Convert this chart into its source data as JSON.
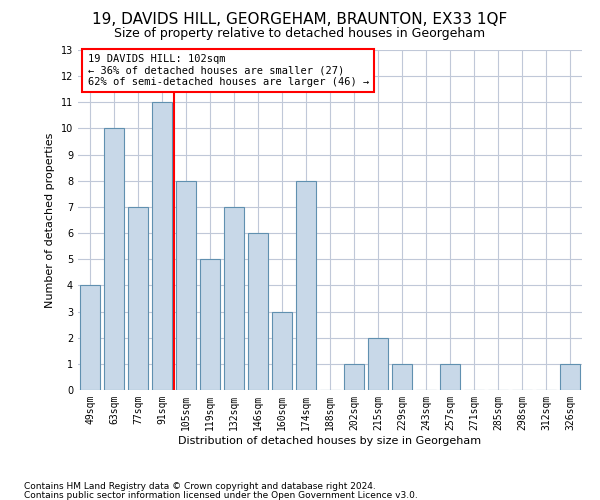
{
  "title": "19, DAVIDS HILL, GEORGEHAM, BRAUNTON, EX33 1QF",
  "subtitle": "Size of property relative to detached houses in Georgeham",
  "xlabel": "Distribution of detached houses by size in Georgeham",
  "ylabel": "Number of detached properties",
  "footnote1": "Contains HM Land Registry data © Crown copyright and database right 2024.",
  "footnote2": "Contains public sector information licensed under the Open Government Licence v3.0.",
  "annotation_line1": "19 DAVIDS HILL: 102sqm",
  "annotation_line2": "← 36% of detached houses are smaller (27)",
  "annotation_line3": "62% of semi-detached houses are larger (46) →",
  "categories": [
    "49sqm",
    "63sqm",
    "77sqm",
    "91sqm",
    "105sqm",
    "119sqm",
    "132sqm",
    "146sqm",
    "160sqm",
    "174sqm",
    "188sqm",
    "202sqm",
    "215sqm",
    "229sqm",
    "243sqm",
    "257sqm",
    "271sqm",
    "285sqm",
    "298sqm",
    "312sqm",
    "326sqm"
  ],
  "values": [
    4,
    10,
    7,
    11,
    8,
    5,
    7,
    6,
    3,
    8,
    0,
    1,
    2,
    1,
    0,
    1,
    0,
    0,
    0,
    0,
    1
  ],
  "bar_color": "#c8d8e8",
  "bar_edge_color": "#6090b0",
  "vline_x": 3.5,
  "vline_color": "red",
  "ylim": [
    0,
    13
  ],
  "yticks": [
    0,
    1,
    2,
    3,
    4,
    5,
    6,
    7,
    8,
    9,
    10,
    11,
    12,
    13
  ],
  "background_color": "#ffffff",
  "grid_color": "#c0c8d8",
  "title_fontsize": 11,
  "subtitle_fontsize": 9,
  "axis_label_fontsize": 8,
  "tick_fontsize": 7,
  "annotation_fontsize": 7.5,
  "footnote_fontsize": 6.5
}
